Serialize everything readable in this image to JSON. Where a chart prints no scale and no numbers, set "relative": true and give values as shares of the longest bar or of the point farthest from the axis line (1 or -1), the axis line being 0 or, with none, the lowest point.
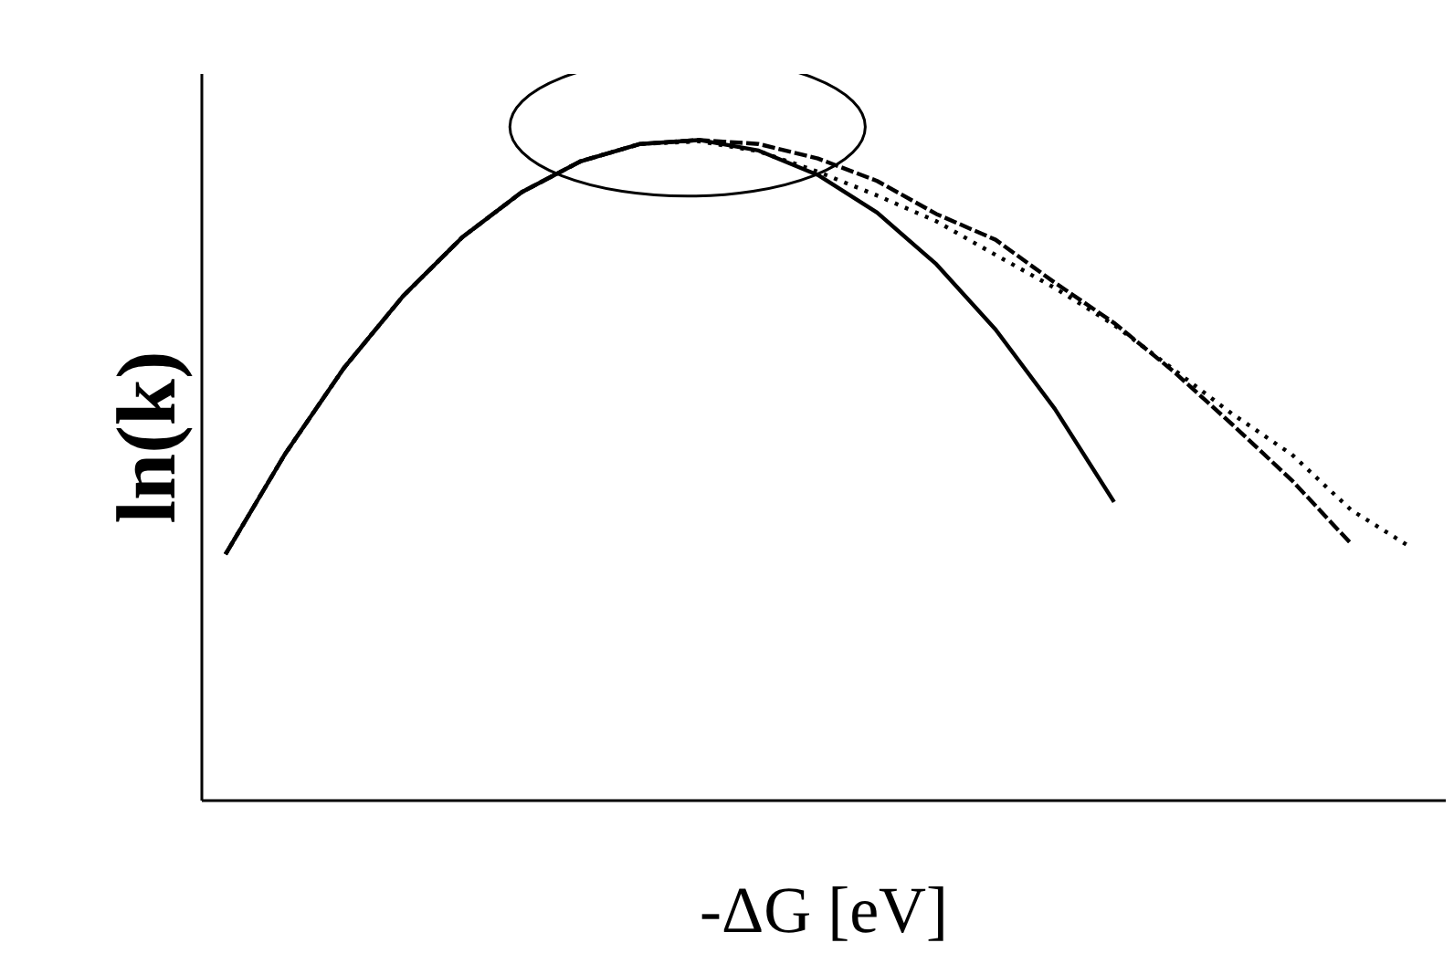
{
  "chart_data": {
    "type": "line",
    "relative": true,
    "xlabel": "-ΔG [eV]",
    "ylabel": "ln(k)",
    "categories": [
      null,
      null,
      null,
      null,
      null,
      null,
      null,
      null,
      null,
      null,
      null,
      null,
      null,
      null,
      null,
      null,
      null,
      null,
      null,
      null,
      null
    ],
    "series": [
      {
        "color": "#000000",
        "line_style": "solid",
        "values": [
          0.373,
          0.524,
          0.655,
          0.764,
          0.853,
          0.921,
          0.968,
          0.994,
          1.0,
          0.984,
          0.947,
          0.89,
          0.812,
          0.713,
          0.593,
          0.452,
          null,
          null,
          null,
          null,
          null
        ]
      },
      {
        "color": "#000000",
        "line_style": "dashed",
        "values": [
          0.373,
          0.524,
          0.655,
          0.764,
          0.853,
          0.921,
          0.968,
          0.994,
          1.0,
          0.994,
          0.972,
          0.938,
          0.888,
          0.849,
          0.784,
          0.723,
          0.65,
          0.569,
          0.485,
          0.389,
          null
        ]
      },
      {
        "color": "#000000",
        "line_style": "dotted",
        "values": [
          0.373,
          0.524,
          0.655,
          0.764,
          0.853,
          0.921,
          0.968,
          0.994,
          0.998,
          0.983,
          0.952,
          0.916,
          0.877,
          0.826,
          0.776,
          0.72,
          0.653,
          0.585,
          0.524,
          0.44,
          0.384
        ]
      }
    ]
  }
}
